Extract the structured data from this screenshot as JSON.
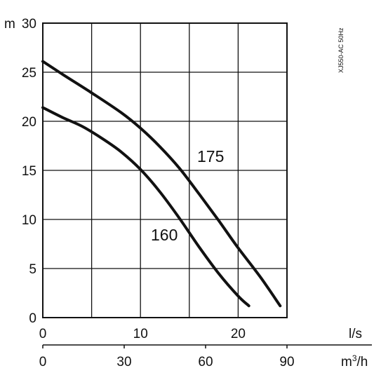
{
  "chart_data": {
    "type": "line",
    "title": "",
    "side_note": "XJ550-AC 50Hz",
    "y_axis": {
      "unit": "m",
      "range": [
        0,
        30
      ],
      "ticks": [
        0,
        5,
        10,
        15,
        20,
        25,
        30
      ],
      "tick_labels": [
        "0",
        "5",
        "10",
        "15",
        "20",
        "25",
        "30"
      ]
    },
    "x_axis_primary": {
      "unit": "l/s",
      "range": [
        0,
        25
      ],
      "ticks": [
        0,
        10,
        20
      ],
      "tick_labels": [
        "0",
        "10",
        "20"
      ],
      "grid_ticks": [
        0,
        5,
        10,
        15,
        20,
        25
      ]
    },
    "x_axis_secondary": {
      "unit": "m³/h",
      "unit_parts": [
        "m",
        "3",
        "/h"
      ],
      "range": [
        0,
        90
      ],
      "ticks": [
        0,
        30,
        60,
        90
      ],
      "tick_labels": [
        "0",
        "30",
        "60",
        "90"
      ]
    },
    "grid": true,
    "series": [
      {
        "name": "175",
        "x": [
          0,
          2,
          5,
          8,
          10,
          12,
          14,
          16,
          18,
          20,
          22.3,
          24.3
        ],
        "y": [
          26.1,
          24.8,
          22.9,
          20.9,
          19.3,
          17.4,
          15.2,
          12.6,
          9.9,
          7.1,
          4.1,
          1.2
        ]
      },
      {
        "name": "160",
        "x": [
          0,
          2,
          4,
          6,
          8,
          10,
          12,
          14,
          16,
          18,
          20,
          21.1
        ],
        "y": [
          21.4,
          20.4,
          19.5,
          18.3,
          16.9,
          15.1,
          12.8,
          10.1,
          7.2,
          4.5,
          2.2,
          1.2
        ]
      }
    ]
  }
}
